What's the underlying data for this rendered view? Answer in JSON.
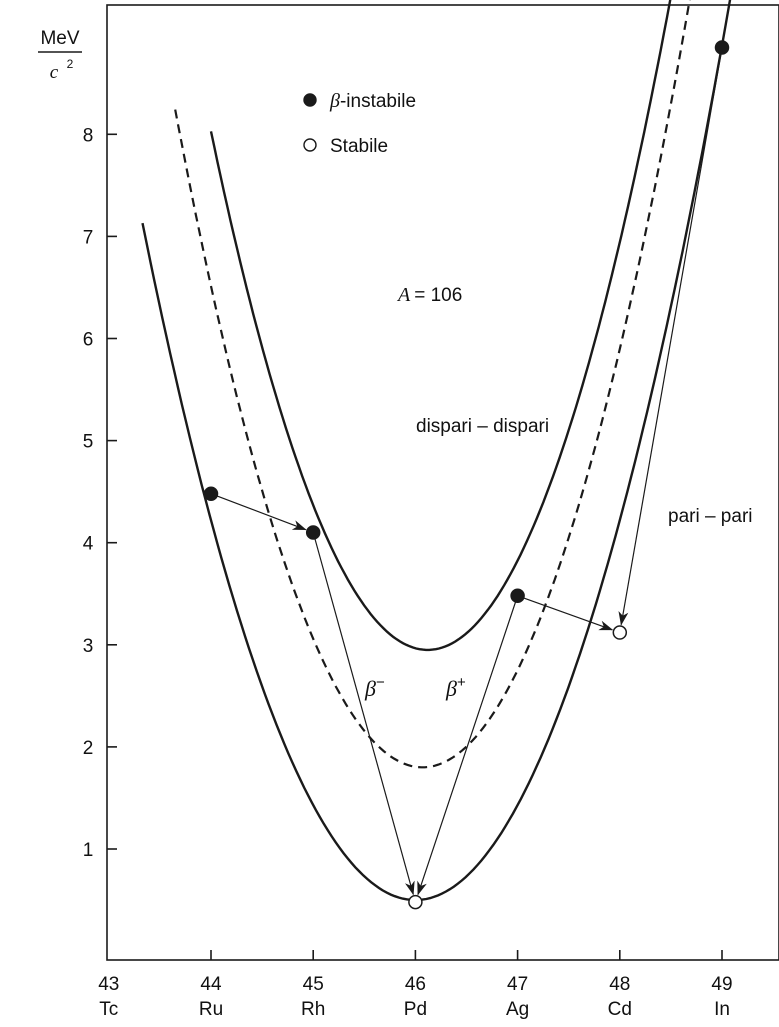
{
  "chart_data": {
    "type": "line",
    "yunit_top": "MeV",
    "yunit_bottom": "c",
    "yunit_exp": "2",
    "annotation_A": "A = 106",
    "A_italic": "A",
    "A_value": "= 106",
    "legend": {
      "placement": "top-left",
      "items": [
        {
          "marker": "filled",
          "symbol": "β",
          "text": "-instabile"
        },
        {
          "marker": "open",
          "symbol": "",
          "text": "Stabile"
        }
      ]
    },
    "x": {
      "range": [
        43,
        49.5
      ],
      "ticks": [
        {
          "z": 43,
          "label": "43",
          "element": "Tc"
        },
        {
          "z": 44,
          "label": "44",
          "element": "Ru"
        },
        {
          "z": 45,
          "label": "45",
          "element": "Rh"
        },
        {
          "z": 46,
          "label": "46",
          "element": "Pd"
        },
        {
          "z": 47,
          "label": "47",
          "element": "Ag"
        },
        {
          "z": 48,
          "label": "48",
          "element": "Cd"
        },
        {
          "z": 49,
          "label": "49",
          "element": "In"
        }
      ]
    },
    "y": {
      "range": [
        -0.1,
        9.0
      ],
      "ticks": [
        1,
        2,
        3,
        4,
        5,
        6,
        7,
        8
      ]
    },
    "series": [
      {
        "name": "dispari – dispari",
        "style": "solid",
        "vertex": [
          46.12,
          2.95
        ],
        "k": 1.13,
        "x_range": [
          44.0,
          49.1
        ]
      },
      {
        "name": "pari – pari",
        "style": "solid",
        "vertex": [
          46.0,
          0.5
        ],
        "k": 0.93,
        "x_range": [
          43.33,
          49.5
        ]
      },
      {
        "name": "",
        "style": "dashed",
        "vertex": [
          46.07,
          1.8
        ],
        "k": 1.1,
        "x_range": [
          43.65,
          49.0
        ]
      }
    ],
    "points": [
      {
        "z": 44,
        "y": 4.48,
        "type": "filled"
      },
      {
        "z": 45,
        "y": 4.1,
        "type": "filled"
      },
      {
        "z": 47,
        "y": 3.48,
        "type": "filled"
      },
      {
        "z": 49,
        "y": 8.85,
        "type": "filled"
      },
      {
        "z": 46,
        "y": 0.48,
        "type": "open"
      },
      {
        "z": 48,
        "y": 3.12,
        "type": "open"
      }
    ],
    "arrows": [
      {
        "from": [
          44,
          4.48
        ],
        "to": [
          45,
          4.1
        ],
        "label": ""
      },
      {
        "from": [
          45,
          4.1
        ],
        "to": [
          46,
          0.48
        ],
        "label": "β⁻"
      },
      {
        "from": [
          47,
          3.48
        ],
        "to": [
          46,
          0.48
        ],
        "label": "β⁺"
      },
      {
        "from": [
          47,
          3.48
        ],
        "to": [
          48,
          3.12
        ],
        "label": ""
      },
      {
        "from": [
          49,
          8.85
        ],
        "to": [
          48,
          3.12
        ],
        "label": ""
      }
    ],
    "curve_labels": {
      "odd_odd": "dispari – dispari",
      "even_even": "pari – pari"
    },
    "beta_minus": {
      "symbol": "β",
      "sup": "−"
    },
    "beta_plus": {
      "symbol": "β",
      "sup": "+"
    },
    "grid": false
  }
}
